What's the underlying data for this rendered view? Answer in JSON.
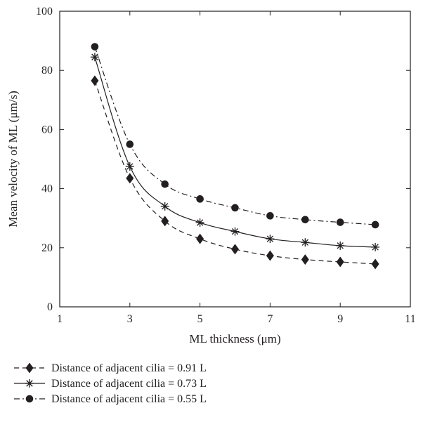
{
  "chart_data": {
    "type": "line",
    "title": "",
    "xlabel": "ML thickness (μm)",
    "ylabel": "Mean velocity of ML (μm/s)",
    "xlim": [
      1,
      11
    ],
    "ylim": [
      0,
      100
    ],
    "xticks": [
      "1",
      "3",
      "5",
      "7",
      "9",
      "11"
    ],
    "yticks": [
      "0",
      "20",
      "40",
      "60",
      "80",
      "100"
    ],
    "grid": false,
    "legend_position": "below",
    "x": [
      2,
      3,
      4,
      5,
      6,
      7,
      8,
      9,
      10
    ],
    "series": [
      {
        "name": "Distance of adjacent cilia = 0.91 L",
        "marker": "diamond",
        "line_style": "dashed",
        "values": [
          76.5,
          43.5,
          29,
          23,
          19.5,
          17.3,
          16,
          15.2,
          14.5
        ]
      },
      {
        "name": "Distance of adjacent cilia = 0.73 L",
        "marker": "asterisk",
        "line_style": "solid",
        "values": [
          84.5,
          47.5,
          34,
          28.5,
          25.5,
          23,
          21.8,
          20.7,
          20.2
        ]
      },
      {
        "name": "Distance of adjacent cilia = 0.55 L",
        "marker": "circle",
        "line_style": "dash-dot",
        "values": [
          88,
          55,
          41.5,
          36.5,
          33.5,
          30.8,
          29.5,
          28.6,
          27.8
        ]
      }
    ],
    "colors": {
      "ink": "#231f20"
    }
  }
}
